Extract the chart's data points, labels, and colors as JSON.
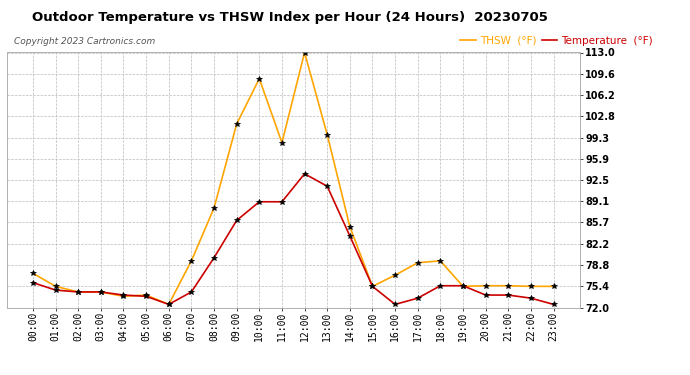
{
  "title": "Outdoor Temperature vs THSW Index per Hour (24 Hours)  20230705",
  "copyright": "Copyright 2023 Cartronics.com",
  "legend_thsw": "THSW  (°F)",
  "legend_temp": "Temperature  (°F)",
  "hours": [
    "00:00",
    "01:00",
    "02:00",
    "03:00",
    "04:00",
    "05:00",
    "06:00",
    "07:00",
    "08:00",
    "09:00",
    "10:00",
    "11:00",
    "12:00",
    "13:00",
    "14:00",
    "15:00",
    "16:00",
    "17:00",
    "18:00",
    "19:00",
    "20:00",
    "21:00",
    "22:00",
    "23:00"
  ],
  "thsw": [
    77.5,
    75.4,
    74.5,
    74.5,
    73.8,
    74.0,
    72.5,
    79.5,
    88.0,
    101.5,
    108.8,
    98.5,
    113.0,
    99.8,
    85.0,
    75.4,
    77.2,
    79.2,
    79.5,
    75.4,
    75.5,
    75.5,
    75.4,
    75.4
  ],
  "temperature": [
    76.0,
    74.8,
    74.5,
    74.5,
    74.0,
    73.8,
    72.5,
    74.5,
    80.0,
    86.0,
    89.0,
    89.0,
    93.5,
    91.5,
    83.5,
    75.4,
    72.5,
    73.5,
    75.5,
    75.5,
    74.0,
    74.0,
    73.5,
    72.5
  ],
  "thsw_color": "#FFA500",
  "temp_color": "#CC0000",
  "marker_color": "#000000",
  "ylim_min": 72.0,
  "ylim_max": 113.0,
  "yticks": [
    72.0,
    75.4,
    78.8,
    82.2,
    85.7,
    89.1,
    92.5,
    95.9,
    99.3,
    102.8,
    106.2,
    109.6,
    113.0
  ],
  "bg_color": "#ffffff",
  "plot_bg_color": "#ffffff",
  "grid_color": "#bbbbbb",
  "title_fontsize": 9.5,
  "copyright_fontsize": 6.5,
  "legend_fontsize": 7.5,
  "tick_fontsize": 7
}
